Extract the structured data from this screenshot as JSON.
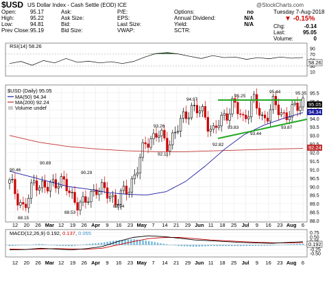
{
  "symbol": "$USD",
  "name": "US Dollar Index - Cash Settle (EOD) ICE",
  "watermark": "@StockCharts.com",
  "quote": {
    "labels": [
      "Open:",
      "High:",
      "Low:",
      "Prev Close:"
    ],
    "values": [
      "95.17",
      "95.22",
      "94.81",
      "95.19"
    ],
    "labels2": [
      "Ask:",
      "Ask Size:",
      "Bid:",
      "Bid Size:"
    ],
    "labels3": [
      "P/E:",
      "EPS:",
      "Last Size:",
      "VWAP:"
    ],
    "labels4": [
      "Options:",
      "Annual Dividend:",
      "Yield:",
      "SCTR:"
    ],
    "values4": [
      "no",
      "N/A",
      "N/A",
      ""
    ],
    "date": "Tuesday  7-Aug-2018",
    "change_pct": "-0.15%",
    "change_labels": [
      "Chg:",
      "Last:",
      "Volume:"
    ],
    "change_values": [
      "-0.14",
      "95.05",
      "0"
    ]
  },
  "colors": {
    "up": "#000000",
    "down": "#cc0000",
    "ma50": "#1a1aa0",
    "ma200": "#c03030",
    "trend": "#22aa22",
    "macd": "#000000",
    "signal": "#cc0000",
    "hist": "#6fb7dc"
  },
  "rsi": {
    "legend": "RSI(14) 58.26",
    "tag": "58.26",
    "levels": [
      "90",
      "70",
      "50",
      "30",
      "10"
    ]
  },
  "price_panel": {
    "legend_main": "$USD (Daily) 95.05",
    "legend_ma50": "MA(50) 94.34",
    "legend_ma200": "MA(200) 92.24",
    "legend_vol": "Volume undef",
    "tags": [
      "95.05",
      "94.34",
      "92.24"
    ]
  },
  "macd": {
    "legend_prefix": "MACD(12,26,9)",
    "v1": "0.192",
    "v2": "0.137",
    "v3": "0.055",
    "tag": "0.192",
    "levels": [
      "0.75",
      "0.50",
      "0.25",
      "0.00",
      "-0.25",
      "-0.50"
    ]
  },
  "date_axis": [
    "12",
    "20",
    "26",
    "Mar",
    "12",
    "19",
    "26",
    "Apr",
    "9",
    "16",
    "23",
    "May",
    "7",
    "14",
    "21",
    "29",
    "Jun",
    "11",
    "18",
    "25",
    "Jul",
    "9",
    "16",
    "23",
    "Aug",
    "6"
  ],
  "chart_data": {
    "type": "candlestick",
    "title": "$USD (Daily) 95.05",
    "ylim": [
      88,
      95.8
    ],
    "yticks": [
      "95.5",
      "95.0",
      "94.5",
      "94.0",
      "93.5",
      "93.0",
      "92.5",
      "92.0",
      "91.5",
      "91.0",
      "90.5",
      "90.0",
      "89.5",
      "89.0",
      "88.5",
      "88.0"
    ],
    "annotations": [
      "90.46",
      "88.15",
      "90.89",
      "88.53",
      "90.29",
      "88.94",
      "93.26",
      "92.11",
      "94.97",
      "92.82",
      "93.83",
      "95.25",
      "93.44",
      "95.44",
      "93.87",
      "95.35"
    ],
    "series": [
      {
        "name": "MA(50)",
        "values": [
          90.9,
          90.6,
          90.3,
          90.0,
          89.85,
          89.65,
          89.55,
          89.5,
          89.7,
          90.3,
          91.2,
          92.2,
          93.05,
          93.6,
          94.0,
          94.34
        ]
      },
      {
        "name": "MA(200)",
        "values": [
          93.0,
          92.6,
          92.35,
          92.2,
          92.1,
          92.05,
          92.05,
          92.1,
          92.15,
          92.2,
          92.24
        ]
      }
    ],
    "rsi_values": [
      38,
      45,
      32,
      48,
      40,
      55,
      42,
      46,
      40,
      44,
      38,
      45,
      60,
      72,
      75,
      70,
      62,
      55,
      65,
      58,
      60,
      52,
      58,
      54,
      60,
      56,
      58.26
    ],
    "macd_values": [
      -0.3,
      -0.28,
      -0.2,
      -0.25,
      -0.3,
      -0.22,
      -0.1,
      0.2,
      0.45,
      0.55,
      0.5,
      0.4,
      0.3,
      0.25,
      0.2,
      0.15,
      0.12,
      0.1,
      0.15,
      0.192
    ],
    "signal_values": [
      -0.25,
      -0.27,
      -0.25,
      -0.22,
      -0.24,
      -0.26,
      -0.2,
      0.0,
      0.2,
      0.38,
      0.45,
      0.45,
      0.38,
      0.3,
      0.25,
      0.2,
      0.16,
      0.13,
      0.12,
      0.137
    ]
  }
}
